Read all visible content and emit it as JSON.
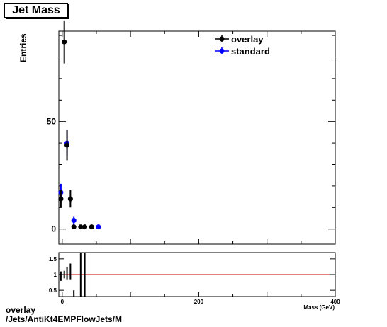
{
  "title": "Jet Mass",
  "footer": {
    "line1": "overlay",
    "line2": "/Jets/AntiKt4EMPFlowJets/M"
  },
  "chart_data": [
    {
      "type": "scatter",
      "title": "Jet Mass",
      "ylabel": "Entries",
      "xlim": [
        -5,
        400
      ],
      "ylim": [
        -7,
        92
      ],
      "yticks": [
        0,
        50
      ],
      "grid": false,
      "legend_position": "top-right",
      "series": [
        {
          "name": "overlay",
          "color": "#000000",
          "points": [
            {
              "x": -2,
              "y": 14,
              "err": 4
            },
            {
              "x": 3,
              "y": 87,
              "err": 10
            },
            {
              "x": 7,
              "y": 39,
              "err": 7
            },
            {
              "x": 12,
              "y": 14,
              "err": 4
            },
            {
              "x": 17,
              "y": 1,
              "err": 1
            },
            {
              "x": 27,
              "y": 1,
              "err": 1
            },
            {
              "x": 33,
              "y": 1,
              "err": 1
            },
            {
              "x": 43,
              "y": 1,
              "err": 1
            }
          ]
        },
        {
          "name": "standard",
          "color": "#0000ff",
          "points": [
            {
              "x": -2,
              "y": 17,
              "err": 4
            },
            {
              "x": 7,
              "y": 40,
              "err": 6
            },
            {
              "x": 17,
              "y": 4,
              "err": 2
            },
            {
              "x": 53,
              "y": 1,
              "err": 1
            }
          ]
        }
      ]
    },
    {
      "type": "scatter",
      "xlabel": "Mass (GeV)",
      "xlim": [
        -5,
        400
      ],
      "ylim": [
        0.3,
        1.7
      ],
      "yticks": [
        0.5,
        1,
        1.5
      ],
      "xticks": [
        0,
        200,
        400
      ],
      "reference_line": 1,
      "reference_color": "#cc0000",
      "ratio_points": [
        {
          "x": -2,
          "y": 0.95,
          "err": 0.15
        },
        {
          "x": 3,
          "y": 1.0,
          "err": 0.12
        },
        {
          "x": 7,
          "y": 1.05,
          "err": 0.2
        },
        {
          "x": 12,
          "y": 1.1,
          "err": 0.25
        },
        {
          "x": 17,
          "y": 0.3,
          "err": 0.2
        },
        {
          "x": 27,
          "y": 1.0,
          "err": 0.7
        },
        {
          "x": 33,
          "y": 1.0,
          "err": 0.7
        }
      ]
    }
  ]
}
